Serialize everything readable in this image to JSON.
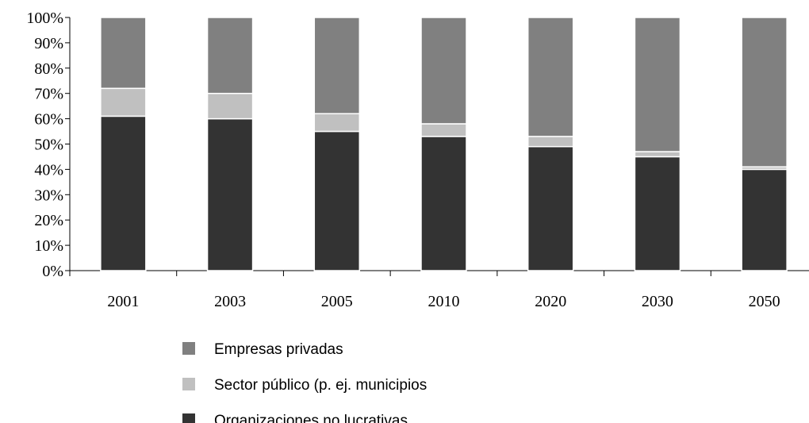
{
  "chart_data": {
    "type": "bar",
    "stacked": true,
    "percent_axis": true,
    "categories": [
      "2001",
      "2003",
      "2005",
      "2010",
      "2020",
      "2030",
      "2050"
    ],
    "series": [
      {
        "name": "Organizaciones no lucrativas",
        "values": [
          61,
          60,
          55,
          53,
          49,
          45,
          40
        ],
        "color": "#333333"
      },
      {
        "name": "Sector público (p. ej. municipios",
        "values": [
          11,
          10,
          7,
          5,
          4,
          2,
          1
        ],
        "color": "#c0c0c0"
      },
      {
        "name": "Empresas privadas",
        "values": [
          28,
          30,
          38,
          42,
          47,
          53,
          59
        ],
        "color": "#808080"
      }
    ],
    "ylim": [
      0,
      100
    ],
    "yticks": [
      "0%",
      "10%",
      "20%",
      "30%",
      "40%",
      "50%",
      "60%",
      "70%",
      "80%",
      "90%",
      "100%"
    ],
    "legend_order": [
      "Empresas privadas",
      "Sector público (p. ej. municipios",
      "Organizaciones no lucrativas"
    ],
    "legend_position": "bottom-center"
  }
}
